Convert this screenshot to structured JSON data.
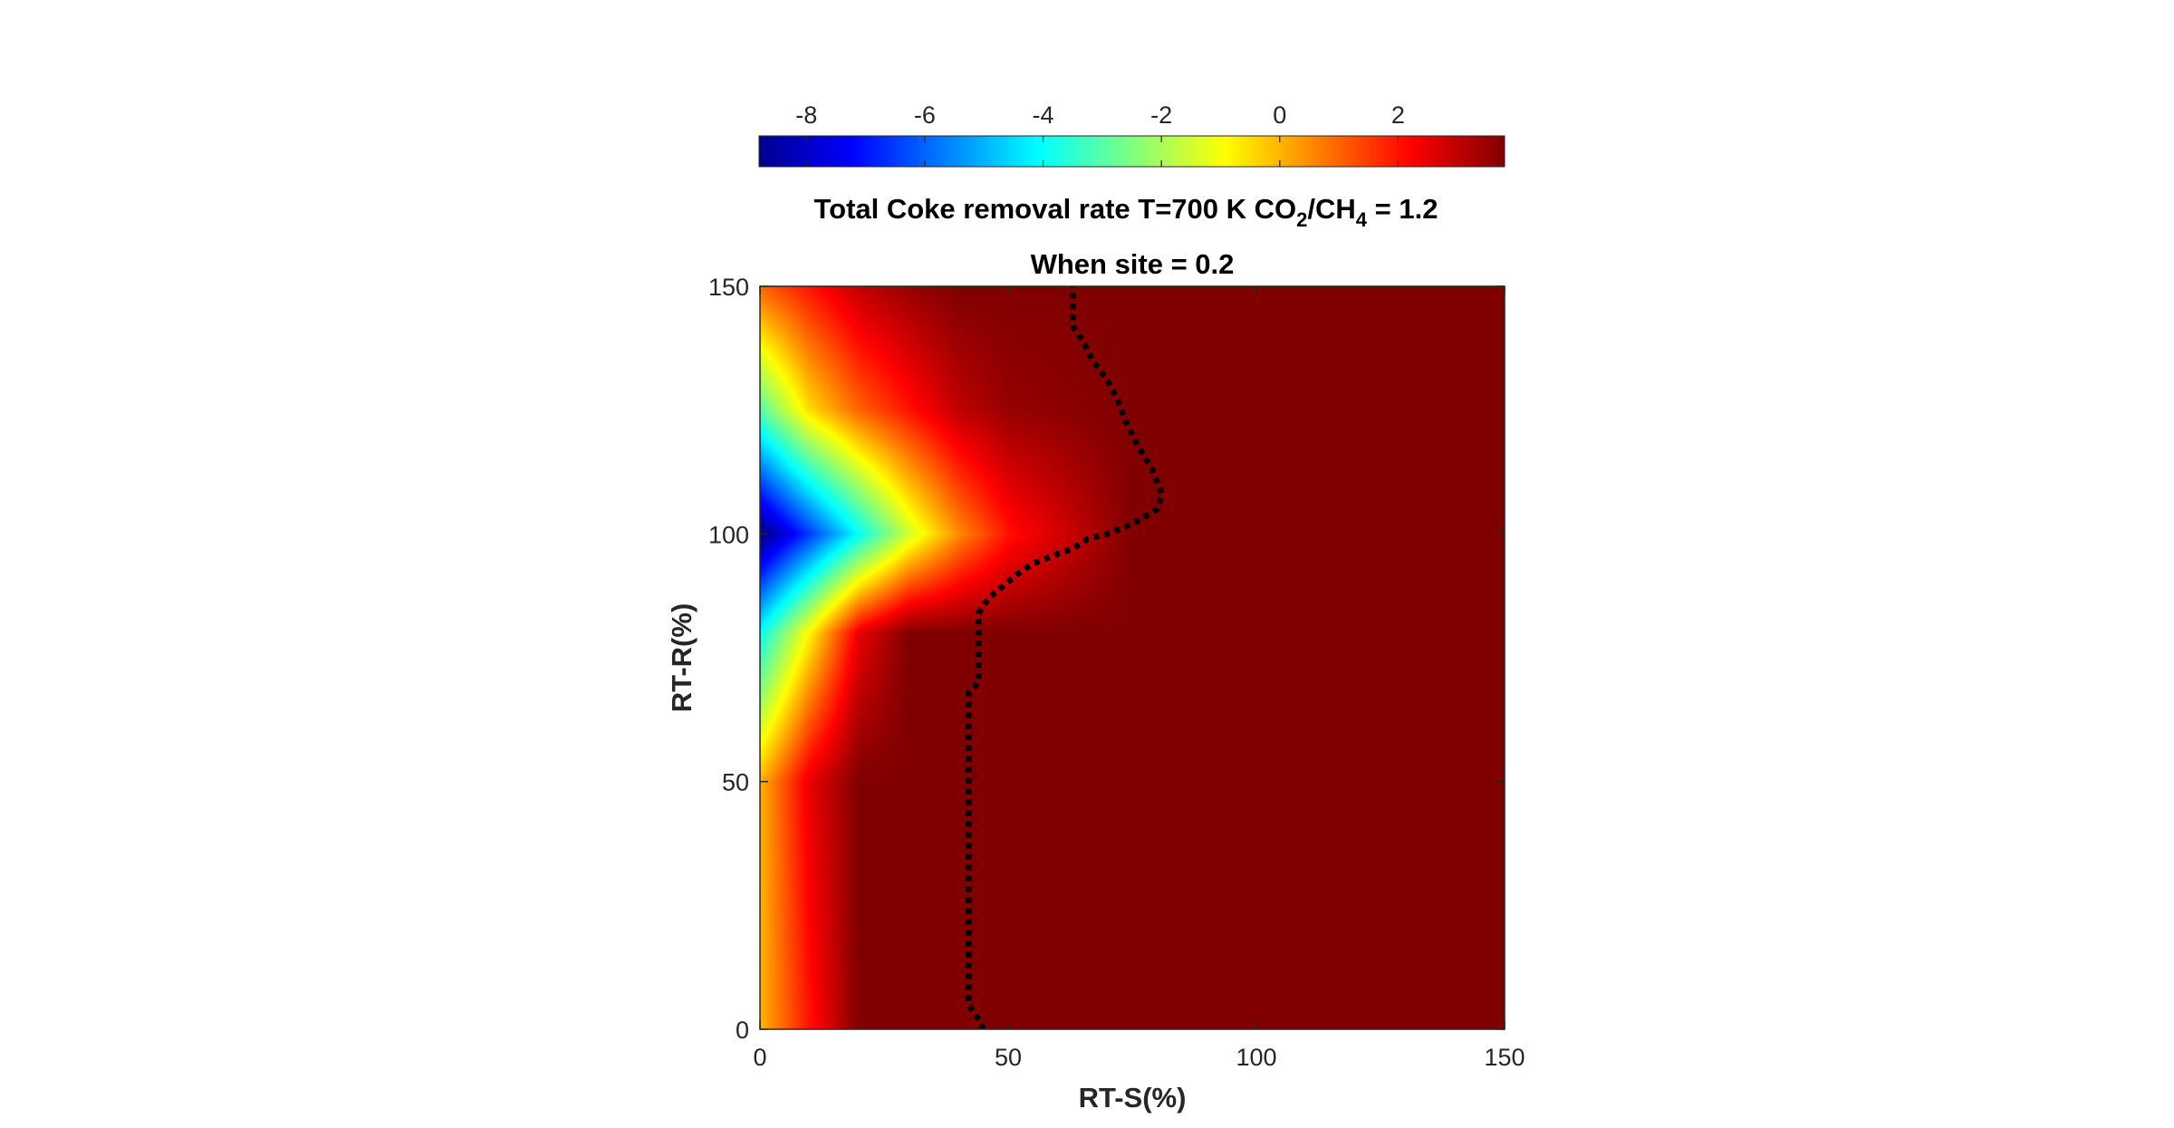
{
  "chart_data": {
    "type": "heatmap",
    "title": "Total Coke removal rate T=700 K CO2/CH4 = 1.2",
    "title_parts": {
      "prefix": "Total Coke removal rate T=700 K CO",
      "sub1": "2",
      "mid": "/CH",
      "sub2": "4",
      "suffix": " = 1.2"
    },
    "subtitle": "When site = 0.2",
    "xlabel": "RT-S(%)",
    "ylabel": "RT-R(%)",
    "xlim": [
      0,
      150
    ],
    "ylim": [
      0,
      150
    ],
    "x_ticks": [
      0,
      50,
      100,
      150
    ],
    "y_ticks": [
      0,
      50,
      100,
      150
    ],
    "colormap": "jet",
    "colorbar": {
      "location": "top",
      "range": [
        -8.8,
        3.8
      ],
      "ticks": [
        -8,
        -6,
        -4,
        -2,
        0,
        2
      ]
    },
    "surface_samples": {
      "x_values": [
        0,
        10,
        20,
        30,
        40,
        50,
        75,
        100,
        150
      ],
      "rows": [
        {
          "y": 150,
          "values": [
            1.0,
            2.0,
            3.0,
            3.5,
            3.8,
            3.8,
            3.8,
            3.8,
            3.8
          ]
        },
        {
          "y": 125,
          "values": [
            -3.0,
            -0.5,
            1.0,
            2.0,
            3.0,
            3.5,
            3.8,
            3.8,
            3.8
          ]
        },
        {
          "y": 100,
          "values": [
            -8.8,
            -6.5,
            -4.0,
            -1.5,
            0.5,
            2.0,
            3.8,
            3.8,
            3.8
          ]
        },
        {
          "y": 80,
          "values": [
            -4.0,
            -0.8,
            2.5,
            3.8,
            3.8,
            3.8,
            3.8,
            3.8,
            3.8
          ]
        },
        {
          "y": 50,
          "values": [
            0.0,
            2.5,
            3.8,
            3.8,
            3.8,
            3.8,
            3.8,
            3.8,
            3.8
          ]
        },
        {
          "y": 0,
          "values": [
            0.0,
            2.0,
            3.8,
            3.8,
            3.8,
            3.8,
            3.8,
            3.8,
            3.8
          ]
        }
      ]
    },
    "contour_line": {
      "name": "zero-removal contour",
      "style": "dotted",
      "color": "#000000",
      "points": [
        [
          45,
          0
        ],
        [
          44,
          2
        ],
        [
          42,
          5
        ],
        [
          42,
          68
        ],
        [
          44,
          70
        ],
        [
          44,
          84
        ],
        [
          46,
          87
        ],
        [
          52,
          92
        ],
        [
          55,
          94
        ],
        [
          60,
          96
        ],
        [
          63,
          97
        ],
        [
          66,
          99
        ],
        [
          70,
          100
        ],
        [
          75,
          102
        ],
        [
          80,
          105
        ],
        [
          81,
          108
        ],
        [
          79,
          113
        ],
        [
          76,
          118
        ],
        [
          74,
          122
        ],
        [
          72,
          127
        ],
        [
          70,
          131
        ],
        [
          67,
          135
        ],
        [
          65,
          139
        ],
        [
          63,
          142
        ],
        [
          63,
          150
        ]
      ]
    }
  }
}
